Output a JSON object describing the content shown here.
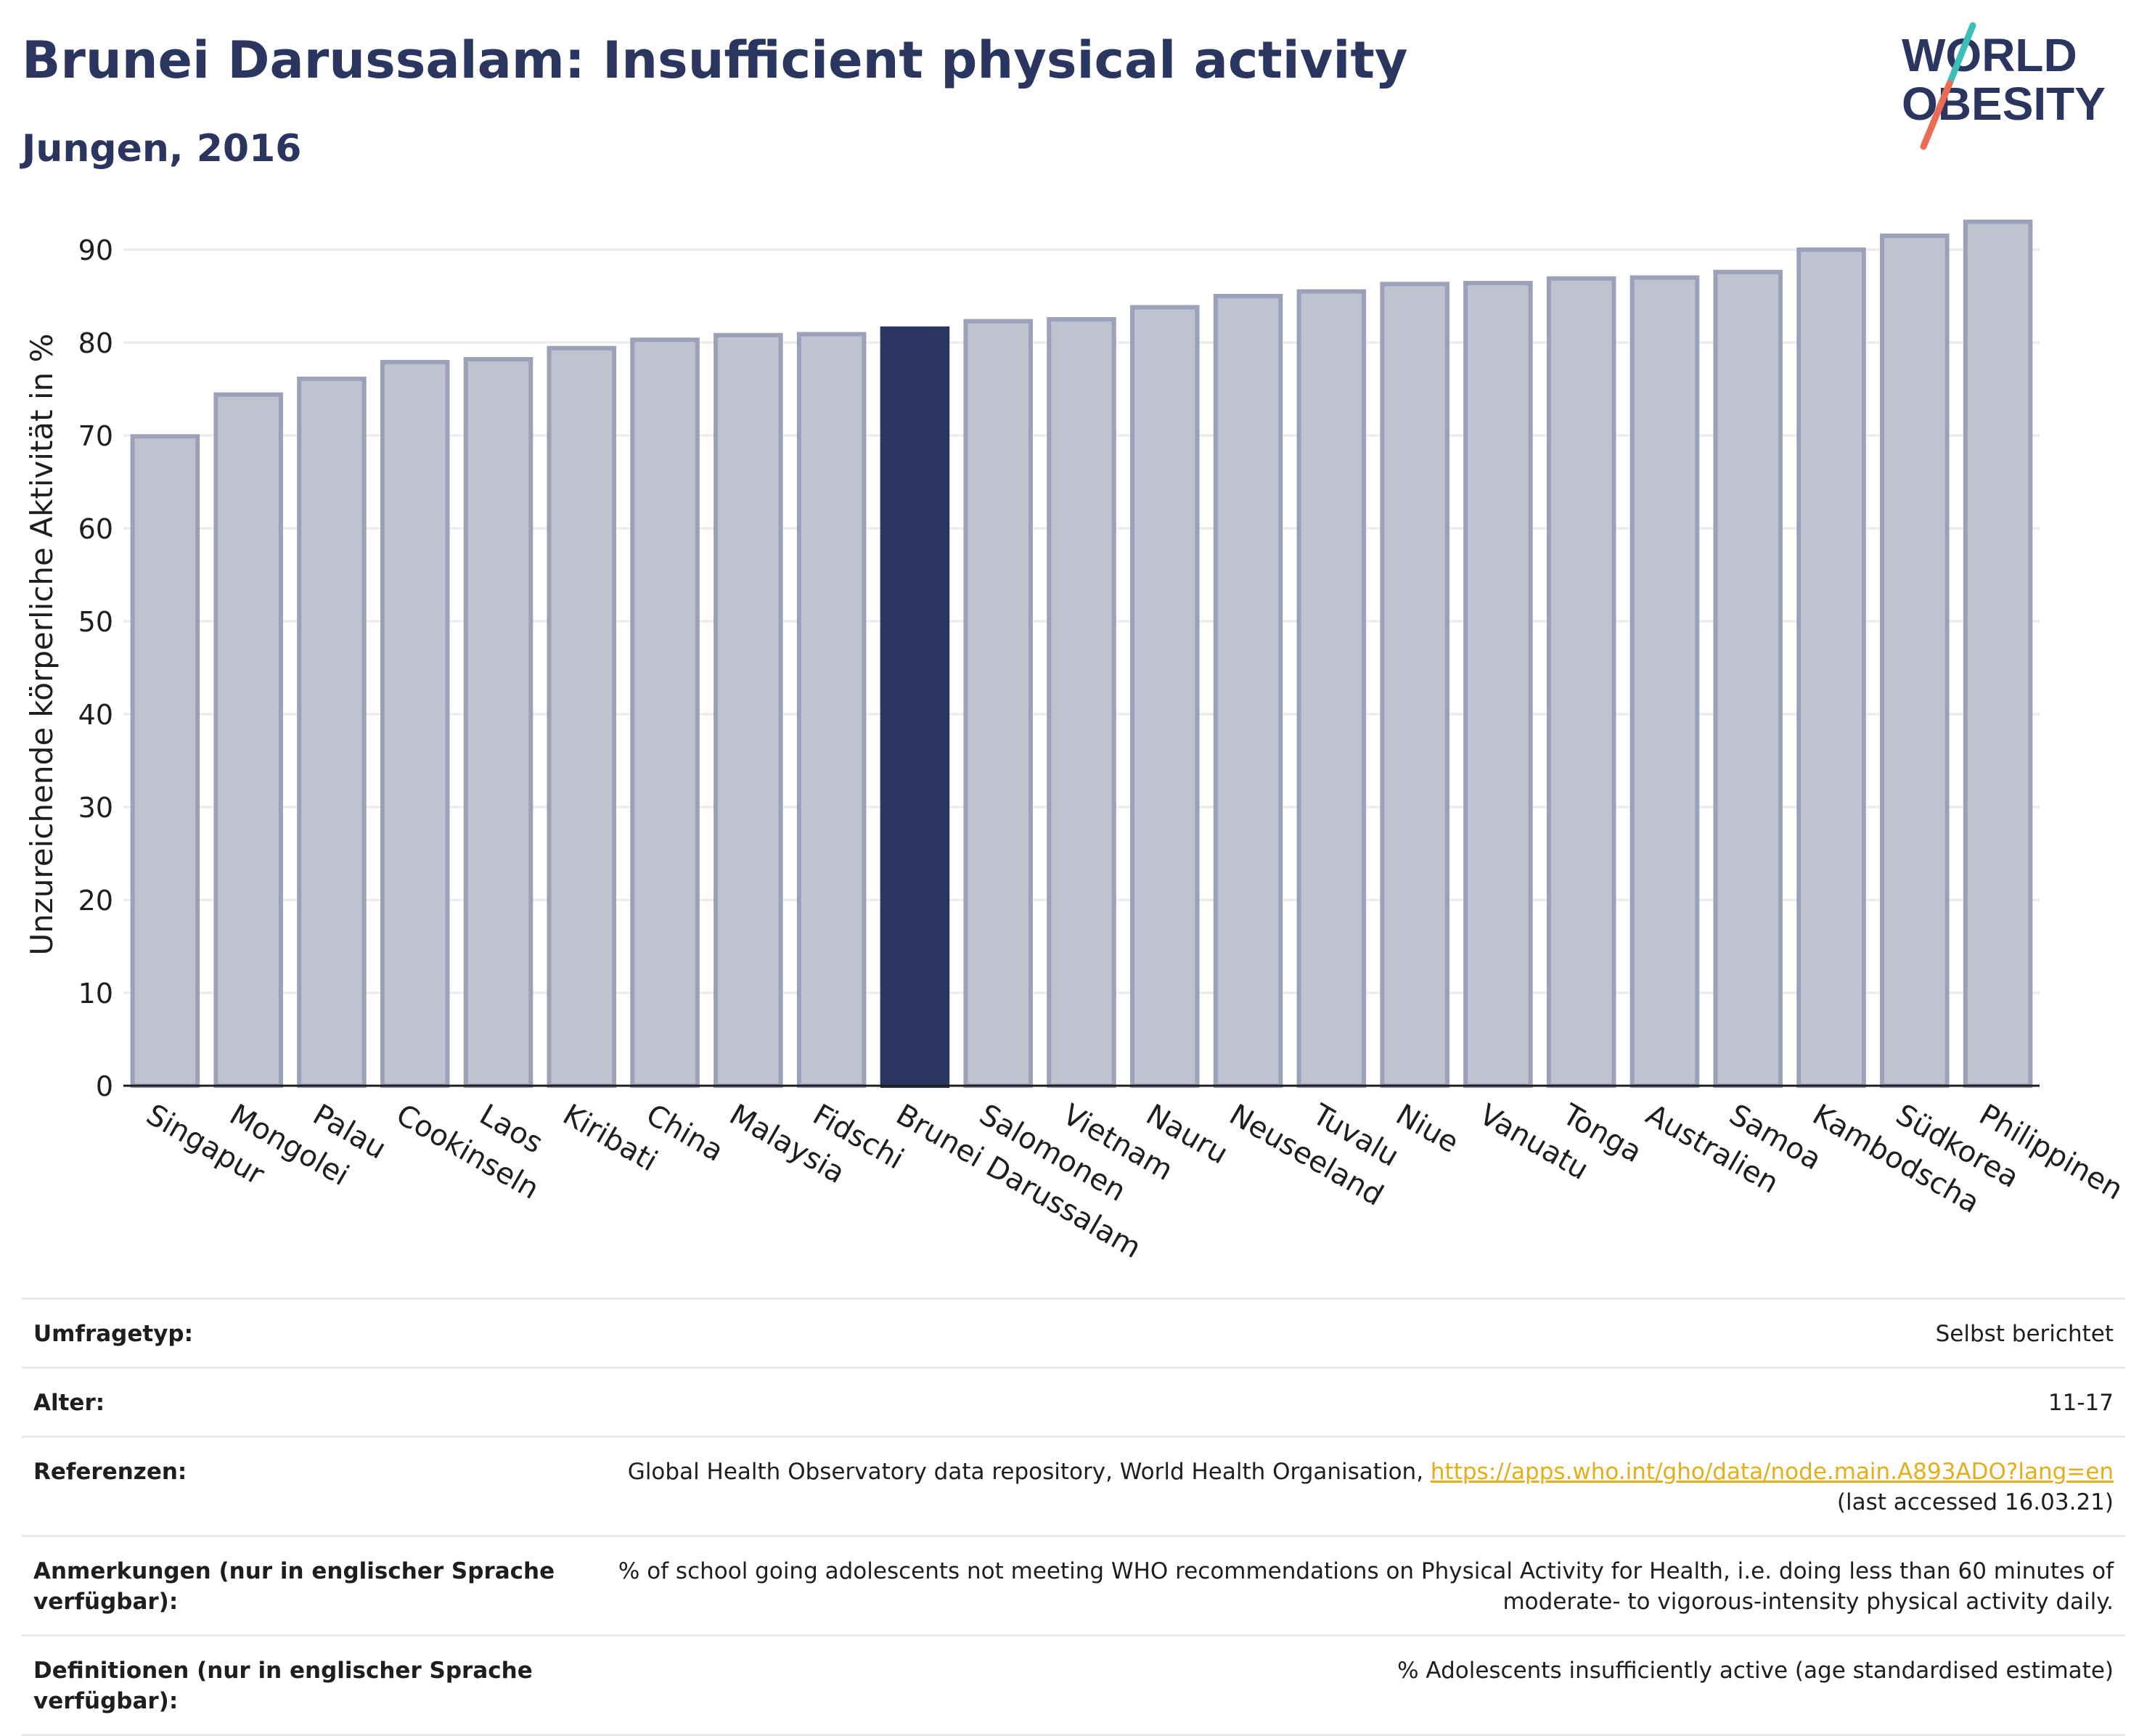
{
  "header": {
    "title": "Brunei Darussalam: Insufficient physical activity",
    "subtitle": "Jungen, 2016"
  },
  "logo": {
    "line1": "WORLD",
    "line2": "OBESITY",
    "colors": {
      "text": "#2a3560",
      "slash_top": "#3dbfb8",
      "slash_bottom": "#ea6c55"
    }
  },
  "chart_data": {
    "type": "bar",
    "title": "",
    "xlabel": "",
    "ylabel": "Unzureichende körperliche Aktivität in %",
    "ylim": [
      0,
      95
    ],
    "yticks": [
      0,
      10,
      20,
      30,
      40,
      50,
      60,
      70,
      80,
      90
    ],
    "grid": true,
    "highlight": "Brunei Darussalam",
    "categories": [
      "Singapur",
      "Mongolei",
      "Palau",
      "Cookinseln",
      "Laos",
      "Kiribati",
      "China",
      "Malaysia",
      "Fidschi",
      "Brunei Darussalam",
      "Salomonen",
      "Vietnam",
      "Nauru",
      "Neuseeland",
      "Tuvalu",
      "Niue",
      "Vanuatu",
      "Tonga",
      "Australien",
      "Samoa",
      "Kambodscha",
      "Südkorea",
      "Philippinen"
    ],
    "values": [
      69.9,
      74.4,
      76.1,
      77.9,
      78.2,
      79.4,
      80.3,
      80.8,
      80.9,
      81.5,
      82.3,
      82.5,
      83.8,
      85.0,
      85.5,
      86.3,
      86.4,
      86.9,
      87.0,
      87.6,
      90.0,
      91.5,
      93.0
    ],
    "colors": {
      "bar": "#bfc3d0",
      "bar_border": "#9ba1b8",
      "highlight": "#2a3560",
      "grid": "#ebebef",
      "axis": "#1e1e1e"
    }
  },
  "meta": {
    "survey_type_label": "Umfragetyp:",
    "survey_type_value": "Selbst berichtet",
    "age_label": "Alter:",
    "age_value": "11-17",
    "references_label": "Referenzen:",
    "references_text": "Global Health Observatory data repository, World Health Organisation, ",
    "references_link": "https://apps.who.int/gho/data/node.main.A893ADO?lang=en",
    "references_accessed": "(last accessed 16.03.21)",
    "notes_label": "Anmerkungen (nur in englischer Sprache verfügbar):",
    "notes_value": "% of school going adolescents not meeting WHO recommendations on Physical Activity for Health, i.e. doing less than 60 minutes of moderate- to vigorous-intensity physical activity daily.",
    "definitions_label": "Definitionen (nur in englischer Sprache verfügbar):",
    "definitions_value": "% Adolescents insufficiently active (age standardised estimate)"
  }
}
